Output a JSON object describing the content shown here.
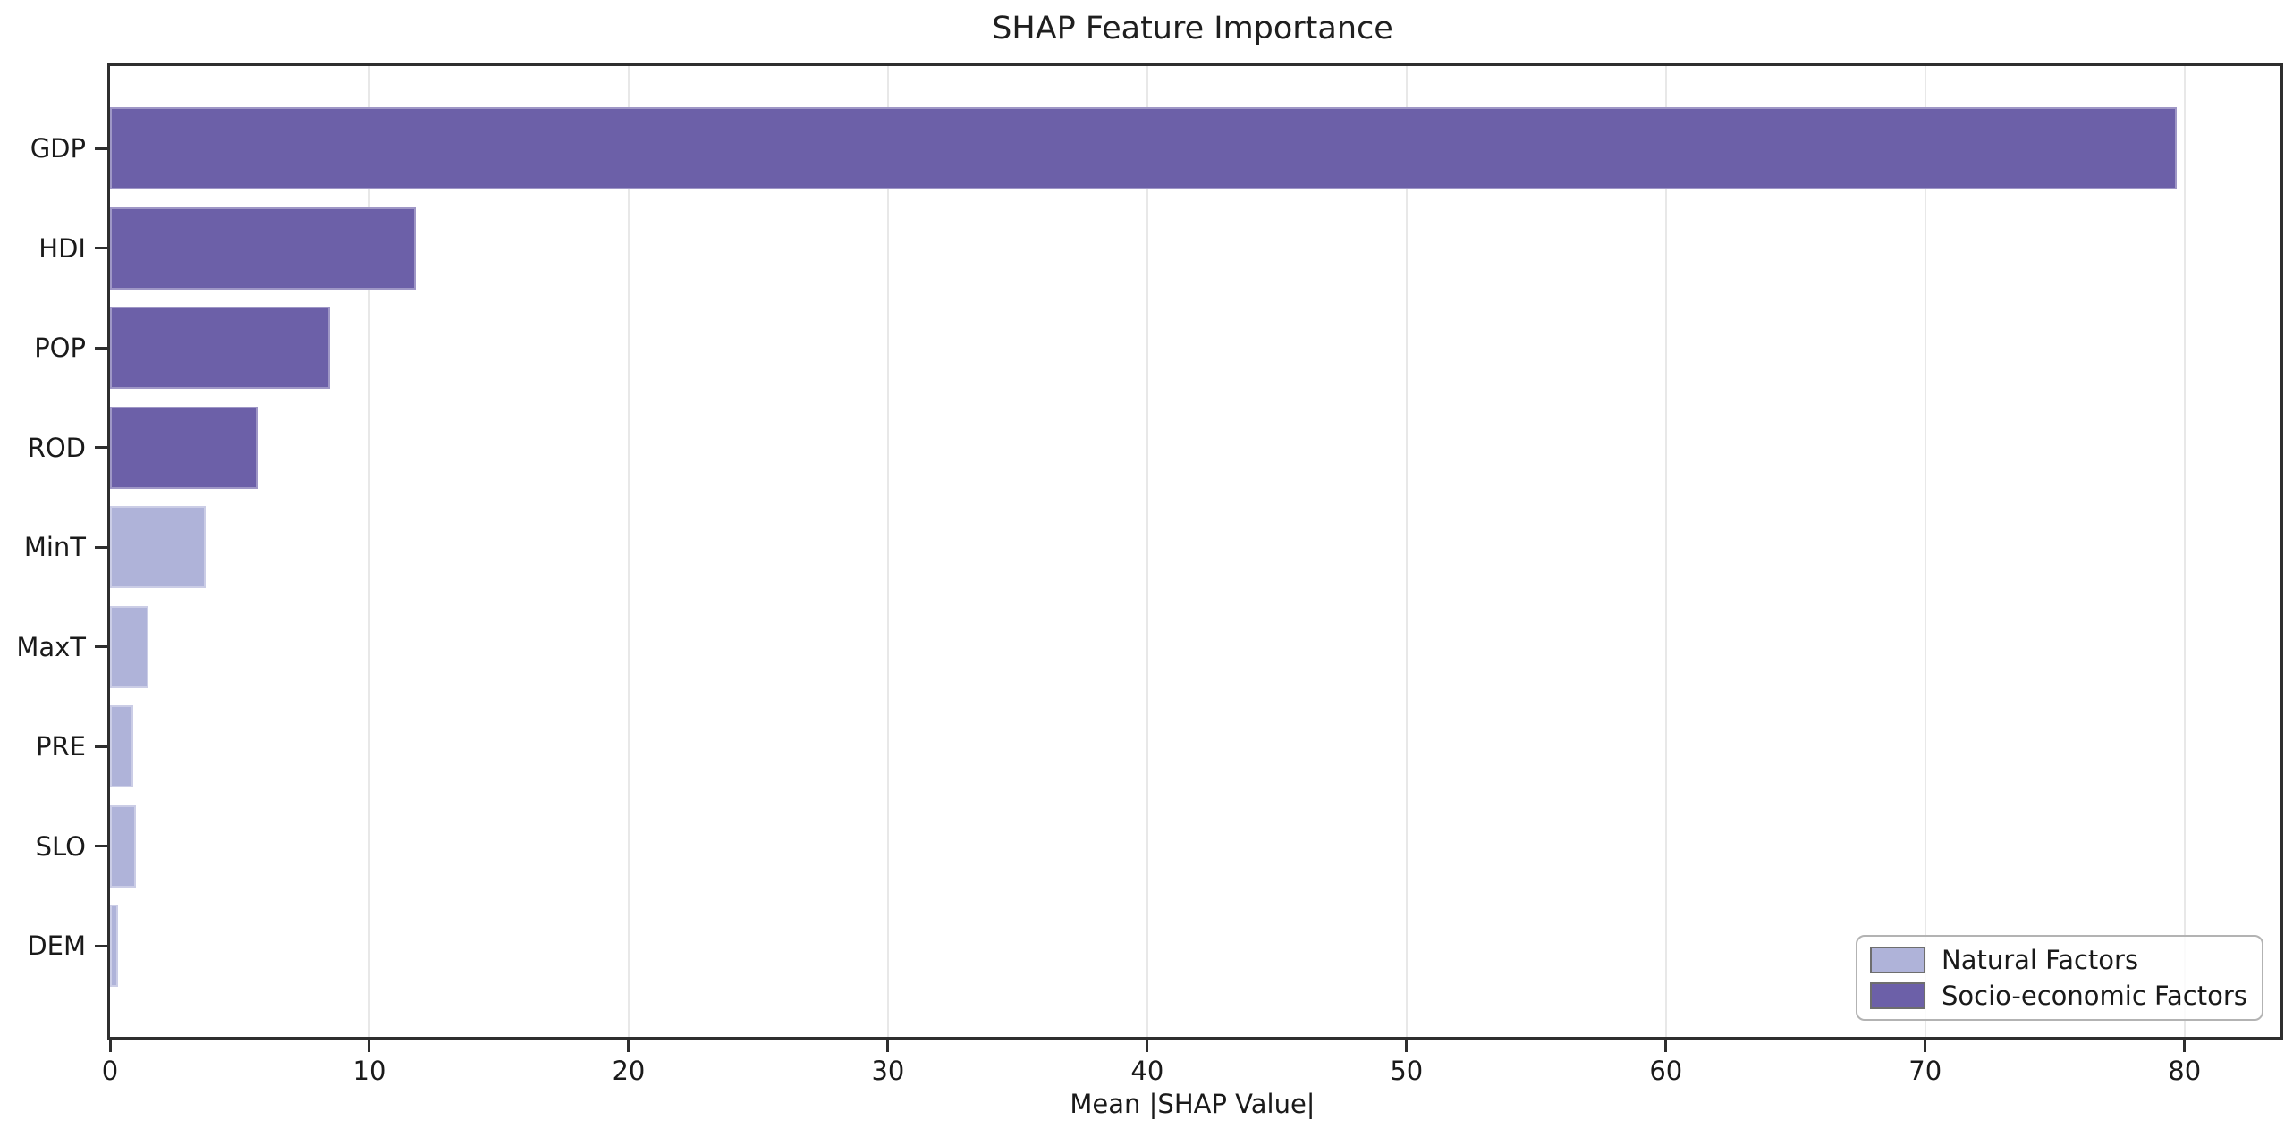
{
  "chart_data": {
    "type": "bar",
    "orientation": "horizontal",
    "title": "SHAP Feature Importance",
    "xlabel": "Mean |SHAP Value|",
    "ylabel": "",
    "categories": [
      "GDP",
      "HDI",
      "POP",
      "ROD",
      "MinT",
      "MaxT",
      "PRE",
      "SLO",
      "DEM"
    ],
    "values": [
      79.7,
      11.8,
      8.5,
      5.7,
      3.7,
      1.5,
      0.9,
      1.0,
      0.3
    ],
    "groups": [
      "socio",
      "socio",
      "socio",
      "socio",
      "natural",
      "natural",
      "natural",
      "natural",
      "natural"
    ],
    "xticks": [
      0,
      10,
      20,
      30,
      40,
      50,
      60,
      70,
      80
    ],
    "xlim": [
      0,
      83.7
    ],
    "grid": true,
    "legend_position": "lower right",
    "legend": [
      {
        "label": "Natural Factors",
        "group": "natural",
        "color": "#afb3d9"
      },
      {
        "label": "Socio-economic Factors",
        "group": "socio",
        "color": "#6c60a8"
      }
    ],
    "colors": {
      "natural": "#afb3d9",
      "socio": "#6c60a8",
      "grid": "#e8e8e8",
      "spine": "#2e2e2e",
      "text": "#1a1a1a"
    }
  }
}
